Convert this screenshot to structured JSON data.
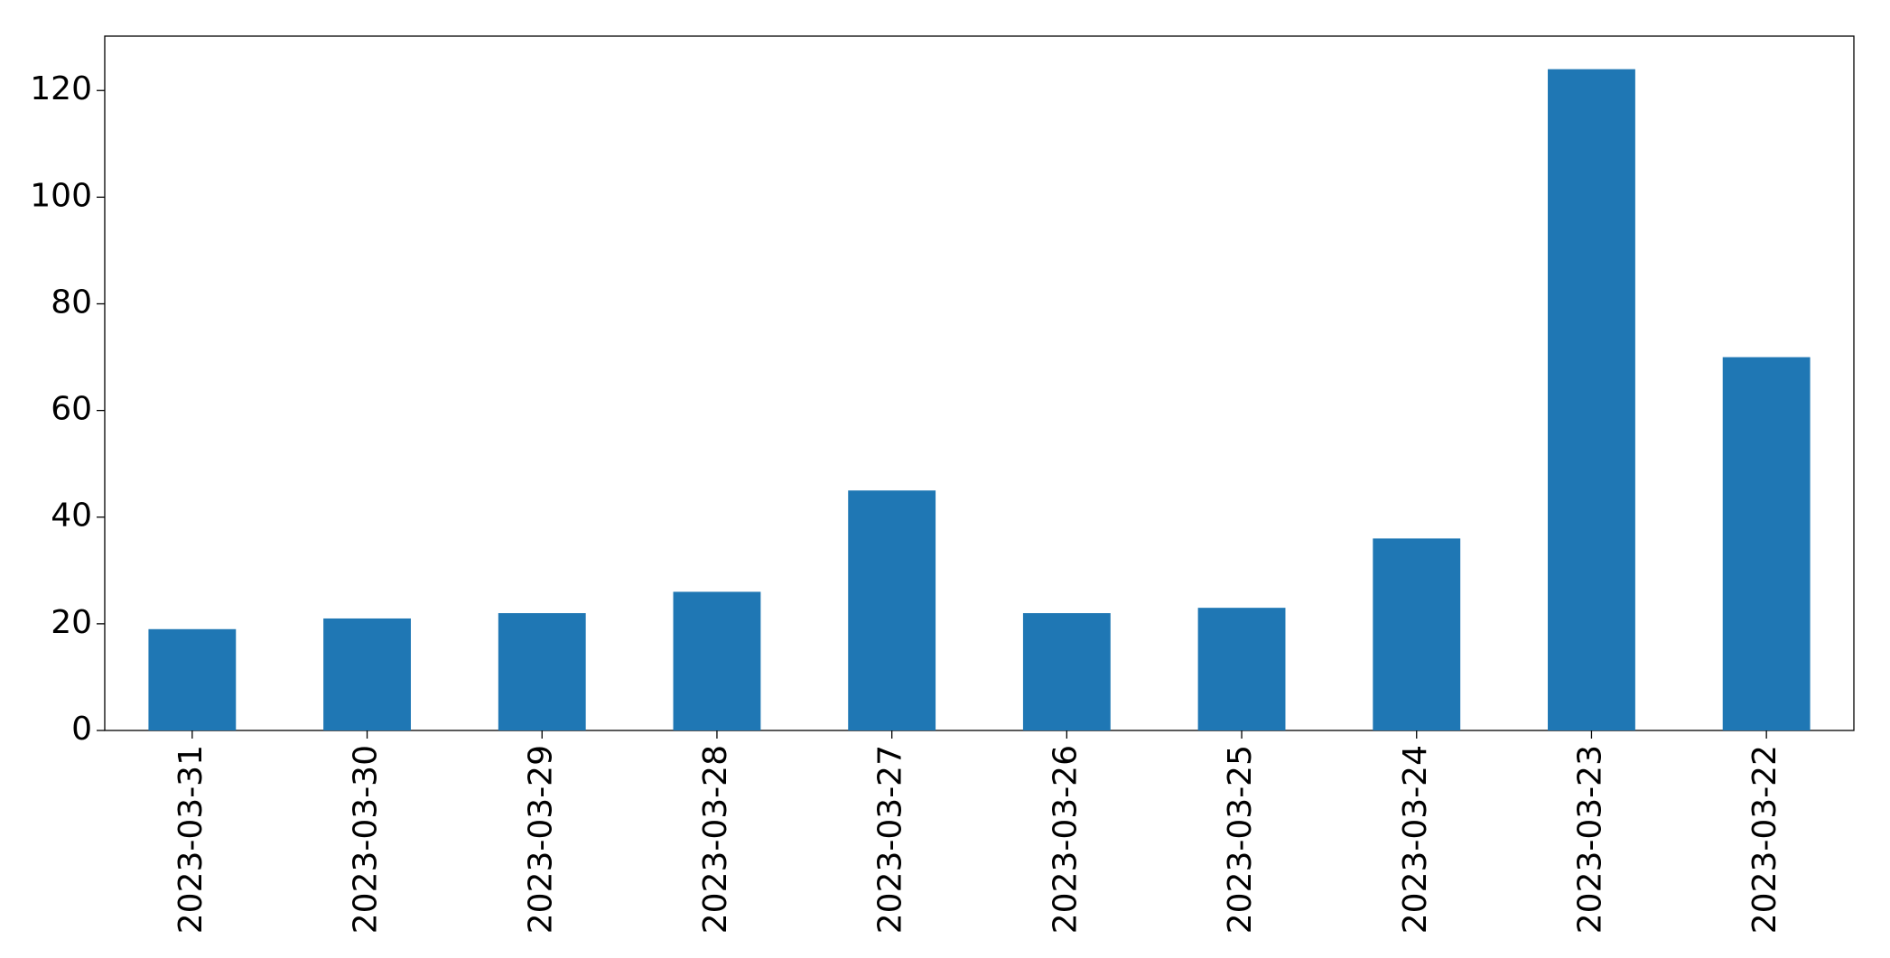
{
  "chart_data": {
    "type": "bar",
    "categories": [
      "2023-03-31",
      "2023-03-30",
      "2023-03-29",
      "2023-03-28",
      "2023-03-27",
      "2023-03-26",
      "2023-03-25",
      "2023-03-24",
      "2023-03-23",
      "2023-03-22"
    ],
    "values": [
      19,
      21,
      22,
      26,
      45,
      22,
      23,
      36,
      124,
      70
    ],
    "color": "#1f77b4",
    "ylim": [
      0,
      130.2
    ],
    "yticks": [
      0,
      20,
      40,
      60,
      80,
      100,
      120
    ],
    "grid": false
  }
}
